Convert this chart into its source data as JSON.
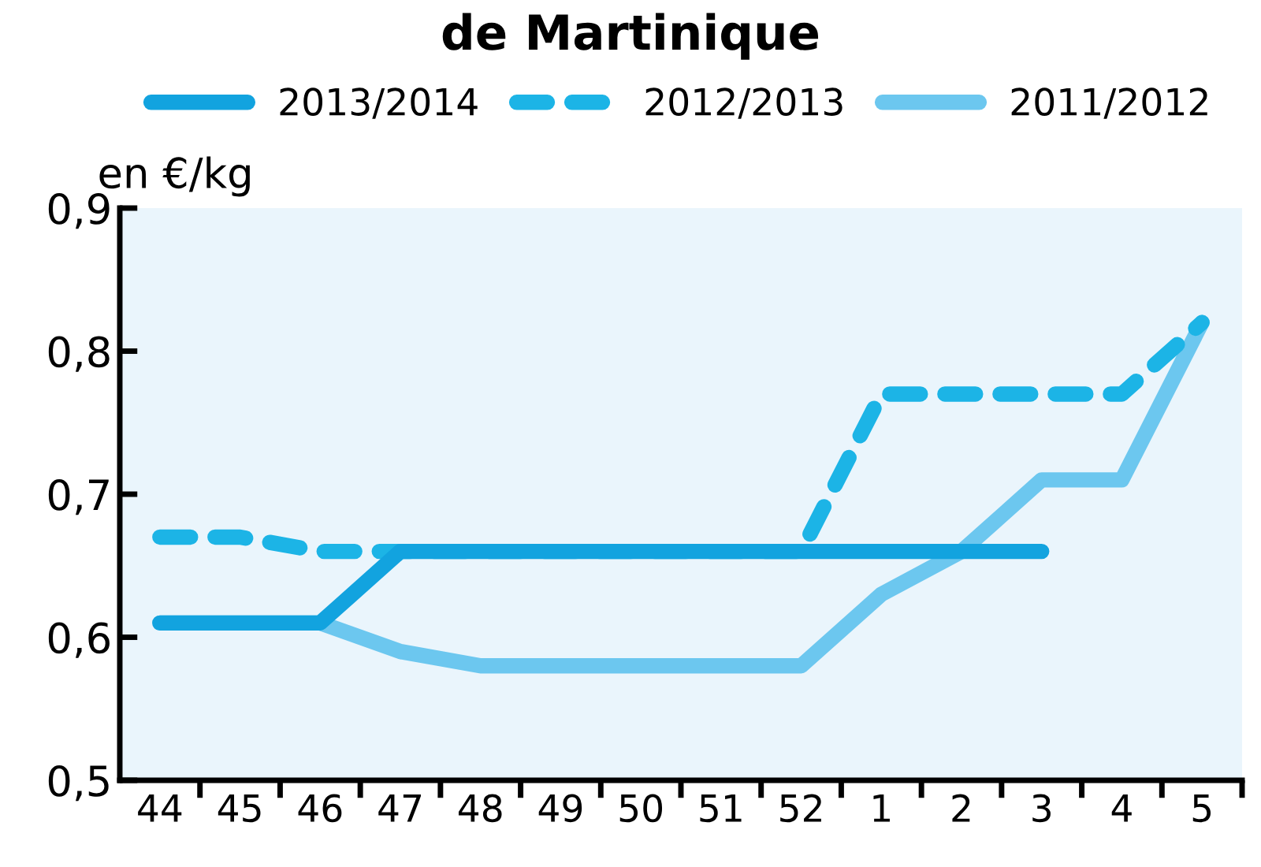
{
  "chart_data": {
    "type": "line",
    "title": "de Martinique",
    "ylabel": "en €/kg",
    "categories": [
      "44",
      "45",
      "46",
      "47",
      "48",
      "49",
      "50",
      "51",
      "52",
      "1",
      "2",
      "3",
      "4",
      "5"
    ],
    "series": [
      {
        "name": "2013/2014",
        "color": "#12a3df",
        "line_style": "solid",
        "values": [
          0.61,
          0.61,
          0.61,
          0.66,
          0.66,
          0.66,
          0.66,
          0.66,
          0.66,
          0.66,
          0.66,
          0.66,
          null,
          null
        ]
      },
      {
        "name": "2012/2013",
        "color": "#1cb4e6",
        "line_style": "dashed",
        "values": [
          0.67,
          0.67,
          0.66,
          0.66,
          0.66,
          0.66,
          0.66,
          0.66,
          0.66,
          0.77,
          0.77,
          0.77,
          0.77,
          0.82
        ]
      },
      {
        "name": "2011/2012",
        "color": "#6cc7ef",
        "line_style": "solid",
        "values": [
          0.61,
          0.61,
          0.61,
          0.59,
          0.58,
          0.58,
          0.58,
          0.58,
          0.58,
          0.63,
          0.66,
          0.71,
          0.71,
          0.82
        ]
      }
    ],
    "ylim": [
      0.5,
      0.9
    ],
    "yticks": [
      {
        "value": 0.5,
        "label": "0,5"
      },
      {
        "value": 0.6,
        "label": "0,6"
      },
      {
        "value": 0.7,
        "label": "0,7"
      },
      {
        "value": 0.8,
        "label": "0,8"
      },
      {
        "value": 0.9,
        "label": "0,9"
      }
    ],
    "grid": false,
    "legend": "top",
    "marker": "none"
  }
}
